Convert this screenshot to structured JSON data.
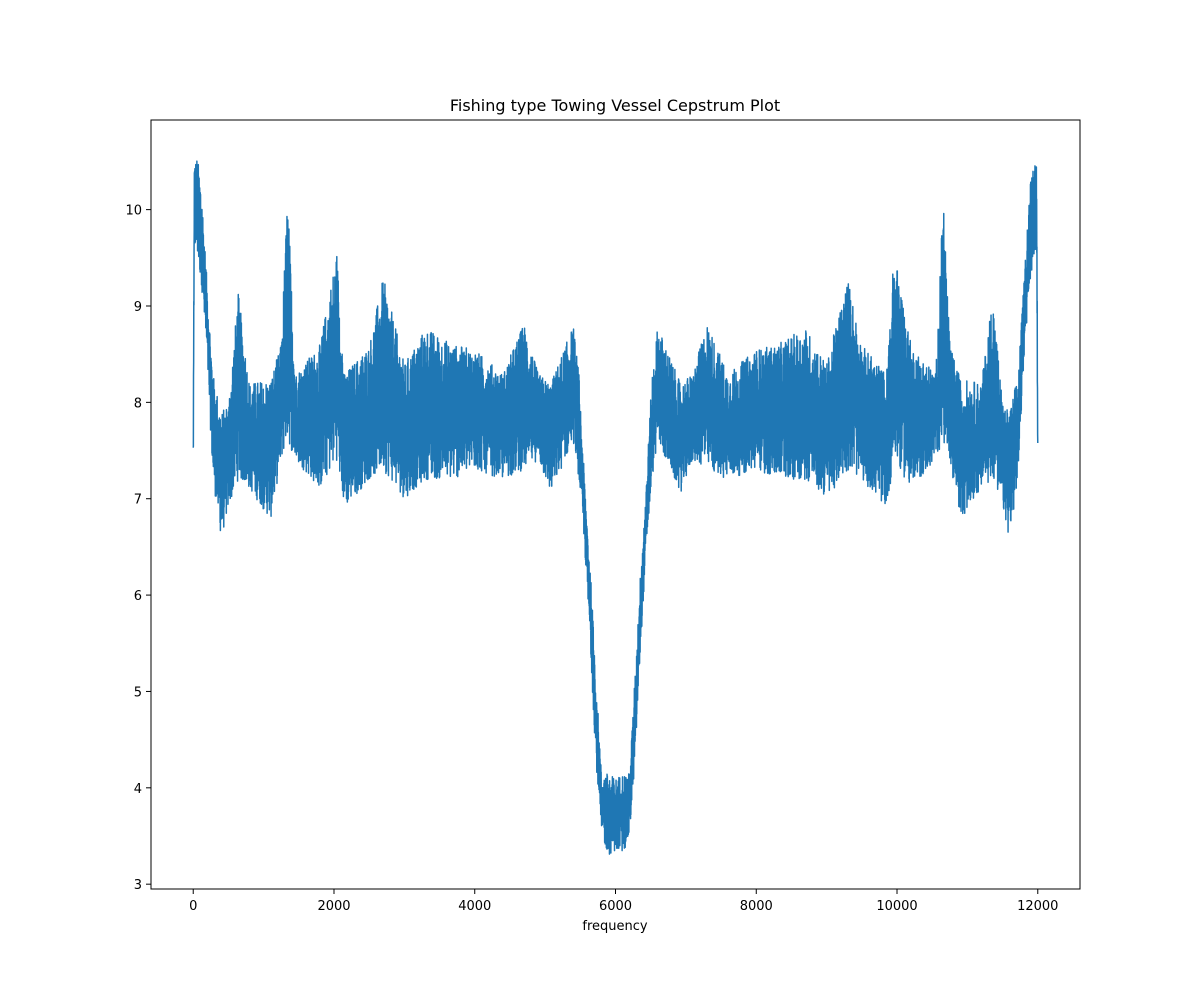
{
  "chart_data": {
    "type": "line",
    "title": "Fishing type Towing Vessel Cepstrum Plot",
    "xlabel": "frequency",
    "ylabel": "",
    "xlim": [
      -600,
      12600
    ],
    "ylim": [
      2.95,
      10.93
    ],
    "x_ticks": [
      0,
      2000,
      4000,
      6000,
      8000,
      10000,
      12000
    ],
    "x_tick_labels": [
      "0",
      "2000",
      "4000",
      "6000",
      "8000",
      "10000",
      "12000"
    ],
    "y_ticks": [
      3,
      4,
      5,
      6,
      7,
      8,
      9,
      10
    ],
    "y_tick_labels": [
      "3",
      "4",
      "5",
      "6",
      "7",
      "8",
      "9",
      "10"
    ],
    "grid": false,
    "series": [
      {
        "color": "#1f77b4",
        "x_start": 0,
        "x_end": 12000,
        "symmetric_about": 6000,
        "envelope": [
          {
            "x": 0,
            "ymin": 7.15,
            "ymax": 7.6
          },
          {
            "x": 15,
            "ymin": 9.6,
            "ymax": 10.5
          },
          {
            "x": 60,
            "ymin": 9.5,
            "ymax": 10.55
          },
          {
            "x": 120,
            "ymin": 9.2,
            "ymax": 10.2
          },
          {
            "x": 200,
            "ymin": 8.4,
            "ymax": 9.2
          },
          {
            "x": 280,
            "ymin": 7.2,
            "ymax": 8.3
          },
          {
            "x": 400,
            "ymin": 6.58,
            "ymax": 7.9
          },
          {
            "x": 500,
            "ymin": 6.9,
            "ymax": 8.0
          },
          {
            "x": 640,
            "ymin": 7.2,
            "ymax": 9.14
          },
          {
            "x": 800,
            "ymin": 7.1,
            "ymax": 8.2
          },
          {
            "x": 1100,
            "ymin": 6.78,
            "ymax": 8.25
          },
          {
            "x": 1250,
            "ymin": 7.4,
            "ymax": 8.6
          },
          {
            "x": 1340,
            "ymin": 7.6,
            "ymax": 10.2
          },
          {
            "x": 1450,
            "ymin": 7.4,
            "ymax": 8.3
          },
          {
            "x": 1800,
            "ymin": 7.1,
            "ymax": 8.6
          },
          {
            "x": 2040,
            "ymin": 7.4,
            "ymax": 9.58
          },
          {
            "x": 2150,
            "ymin": 6.9,
            "ymax": 8.3
          },
          {
            "x": 2500,
            "ymin": 7.2,
            "ymax": 8.6
          },
          {
            "x": 2700,
            "ymin": 7.3,
            "ymax": 9.3
          },
          {
            "x": 3000,
            "ymin": 7.0,
            "ymax": 8.4
          },
          {
            "x": 3300,
            "ymin": 7.2,
            "ymax": 8.78
          },
          {
            "x": 3700,
            "ymin": 7.2,
            "ymax": 8.6
          },
          {
            "x": 4000,
            "ymin": 7.3,
            "ymax": 8.55
          },
          {
            "x": 4400,
            "ymin": 7.2,
            "ymax": 8.3
          },
          {
            "x": 4700,
            "ymin": 7.3,
            "ymax": 8.83
          },
          {
            "x": 4900,
            "ymin": 7.4,
            "ymax": 8.3
          },
          {
            "x": 5080,
            "ymin": 7.05,
            "ymax": 8.2
          },
          {
            "x": 5400,
            "ymin": 7.6,
            "ymax": 8.8
          },
          {
            "x": 5480,
            "ymin": 7.2,
            "ymax": 8.3
          },
          {
            "x": 5560,
            "ymin": 6.5,
            "ymax": 7.2
          },
          {
            "x": 5640,
            "ymin": 5.5,
            "ymax": 6.3
          },
          {
            "x": 5720,
            "ymin": 4.3,
            "ymax": 5.2
          },
          {
            "x": 5800,
            "ymin": 3.5,
            "ymax": 4.15
          },
          {
            "x": 5900,
            "ymin": 3.3,
            "ymax": 4.15
          },
          {
            "x": 6000,
            "ymin": 3.35,
            "ymax": 4.1
          }
        ]
      }
    ]
  }
}
